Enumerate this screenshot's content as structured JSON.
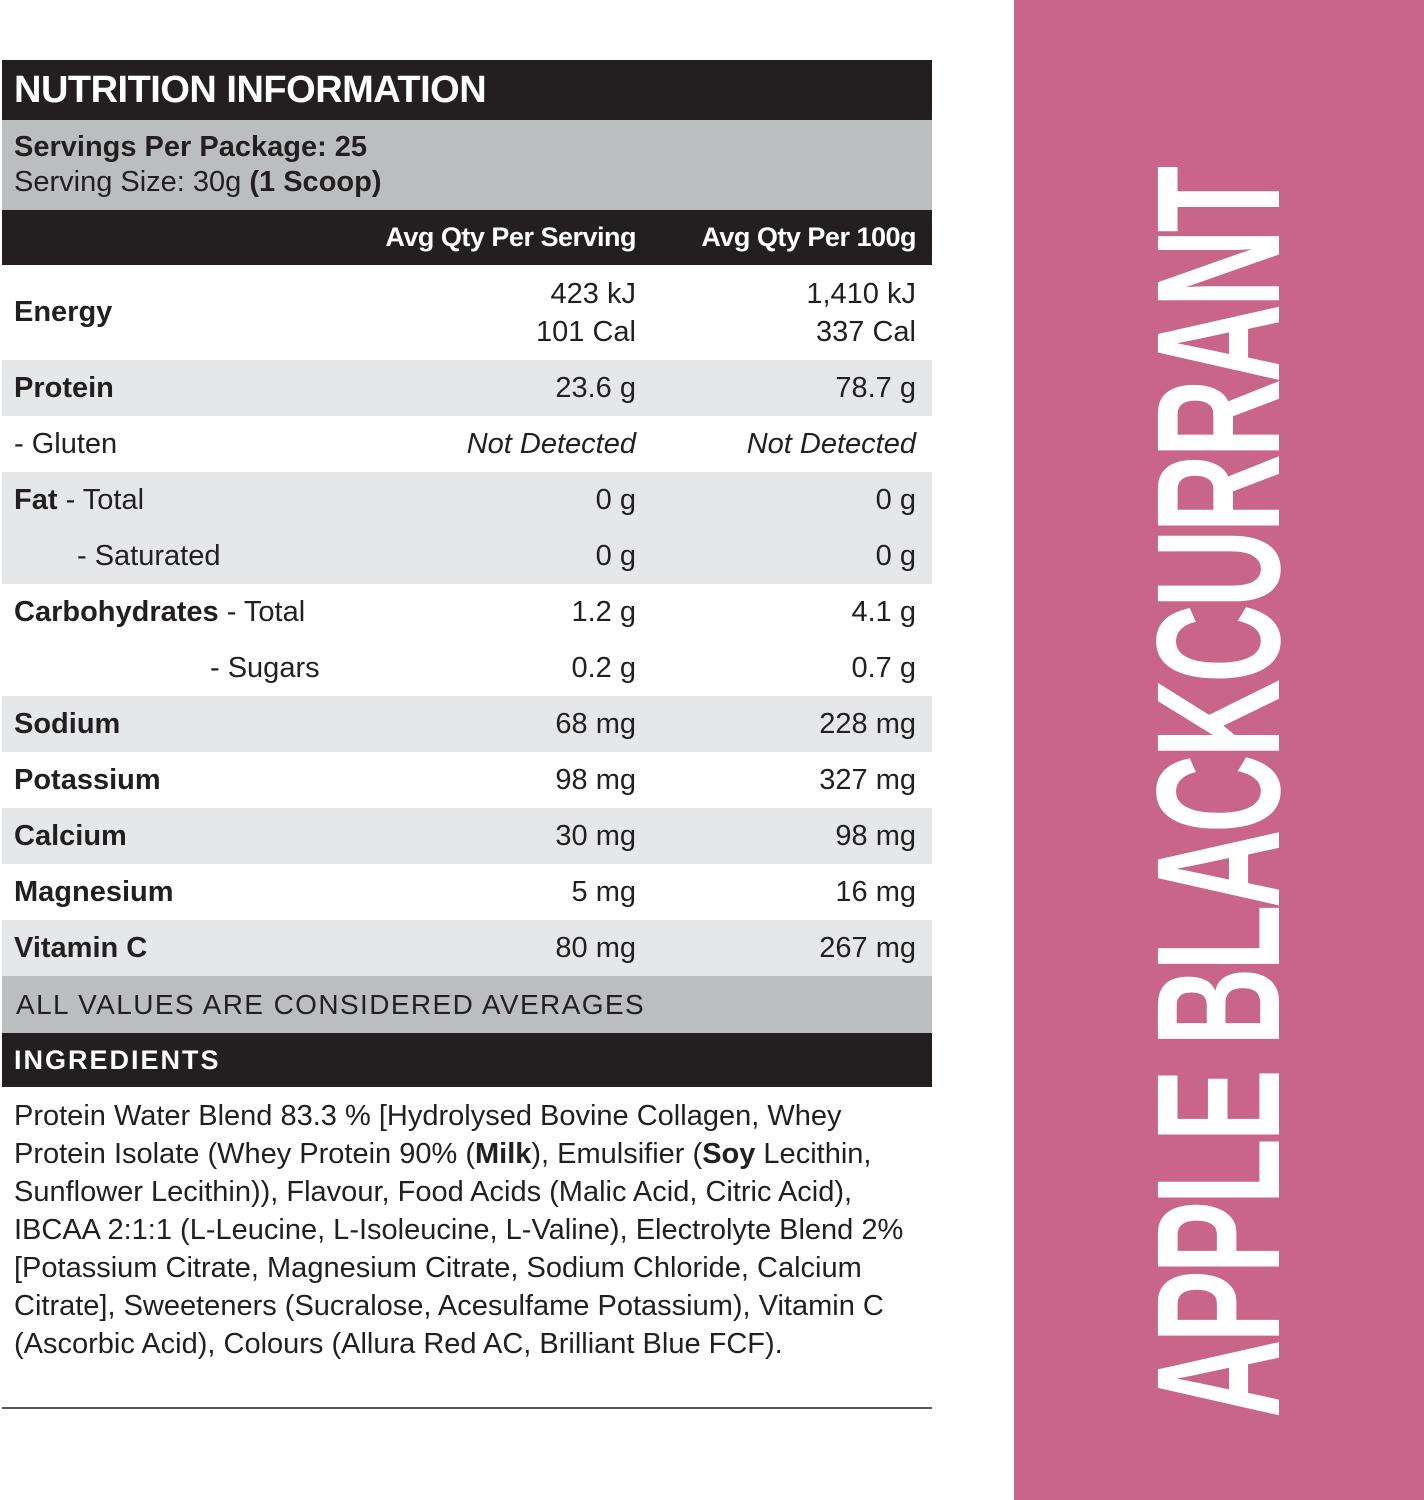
{
  "label": {
    "title": "NUTRITION INFORMATION",
    "servings_per_package": "Servings Per Package: 25",
    "serving_size_prefix": "Serving Size: 30g",
    "serving_size_suffix": "(1 Scoop)",
    "columns": [
      "",
      "Avg Qty Per Serving",
      "Avg Qty Per 100g"
    ],
    "rows": [
      {
        "name": "Energy",
        "per_serving": [
          "423 kJ",
          "101 Cal"
        ],
        "per_100g": [
          "1,410 kJ",
          "337 Cal"
        ]
      },
      {
        "name": "Protein",
        "per_serving": "23.6 g",
        "per_100g": "78.7 g"
      },
      {
        "name": "- Gluten",
        "per_serving": "Not Detected",
        "per_100g": "Not Detected"
      },
      {
        "name": "Fat",
        "sub": "- Total",
        "per_serving": "0 g",
        "per_100g": "0 g"
      },
      {
        "name": "- Saturated",
        "per_serving": "0 g",
        "per_100g": "0 g"
      },
      {
        "name": "Carbohydrates",
        "sub": "- Total",
        "per_serving": "1.2 g",
        "per_100g": "4.1 g"
      },
      {
        "name": "- Sugars",
        "per_serving": "0.2 g",
        "per_100g": "0.7 g"
      },
      {
        "name": "Sodium",
        "per_serving": "68 mg",
        "per_100g": "228 mg"
      },
      {
        "name": "Potassium",
        "per_serving": "98 mg",
        "per_100g": "327 mg"
      },
      {
        "name": "Calcium",
        "per_serving": "30 mg",
        "per_100g": "98 mg"
      },
      {
        "name": "Magnesium",
        "per_serving": "5 mg",
        "per_100g": "16 mg"
      },
      {
        "name": "Vitamin C",
        "per_serving": "80 mg",
        "per_100g": "267 mg"
      }
    ],
    "averages_note": "ALL VALUES ARE CONSIDERED AVERAGES"
  },
  "ingredients": {
    "heading": "INGREDIENTS",
    "parts": [
      "Protein Water Blend 83.3 % [Hydrolysed Bovine Collagen, Whey Protein Isolate (Whey Protein 90% (",
      "Milk",
      "), Emulsifier (",
      "Soy",
      " Lecithin, Sunflower Lecithin)), Flavour, Food Acids (Malic Acid, Citric Acid), IBCAA 2:1:1 (L-Leucine, L-Isoleucine, L-Valine), Electrolyte Blend 2% [Potassium Citrate, Magnesium Citrate, Sodium Chloride, Calcium Citrate], Sweeteners (Sucralose, Acesulfame Potassium), Vitamin C (Ascorbic Acid), Colours (Allura Red AC, Brilliant Blue FCF)."
    ],
    "allergens": [
      "Milk",
      "Soy"
    ]
  },
  "flavour": {
    "name": "APPLE BLACKCURRANT",
    "color": "#c86589"
  },
  "colors": {
    "header_black": "#231f20",
    "servings_gray": "#bcbdbf",
    "row_gray": "#e6e7e8"
  }
}
